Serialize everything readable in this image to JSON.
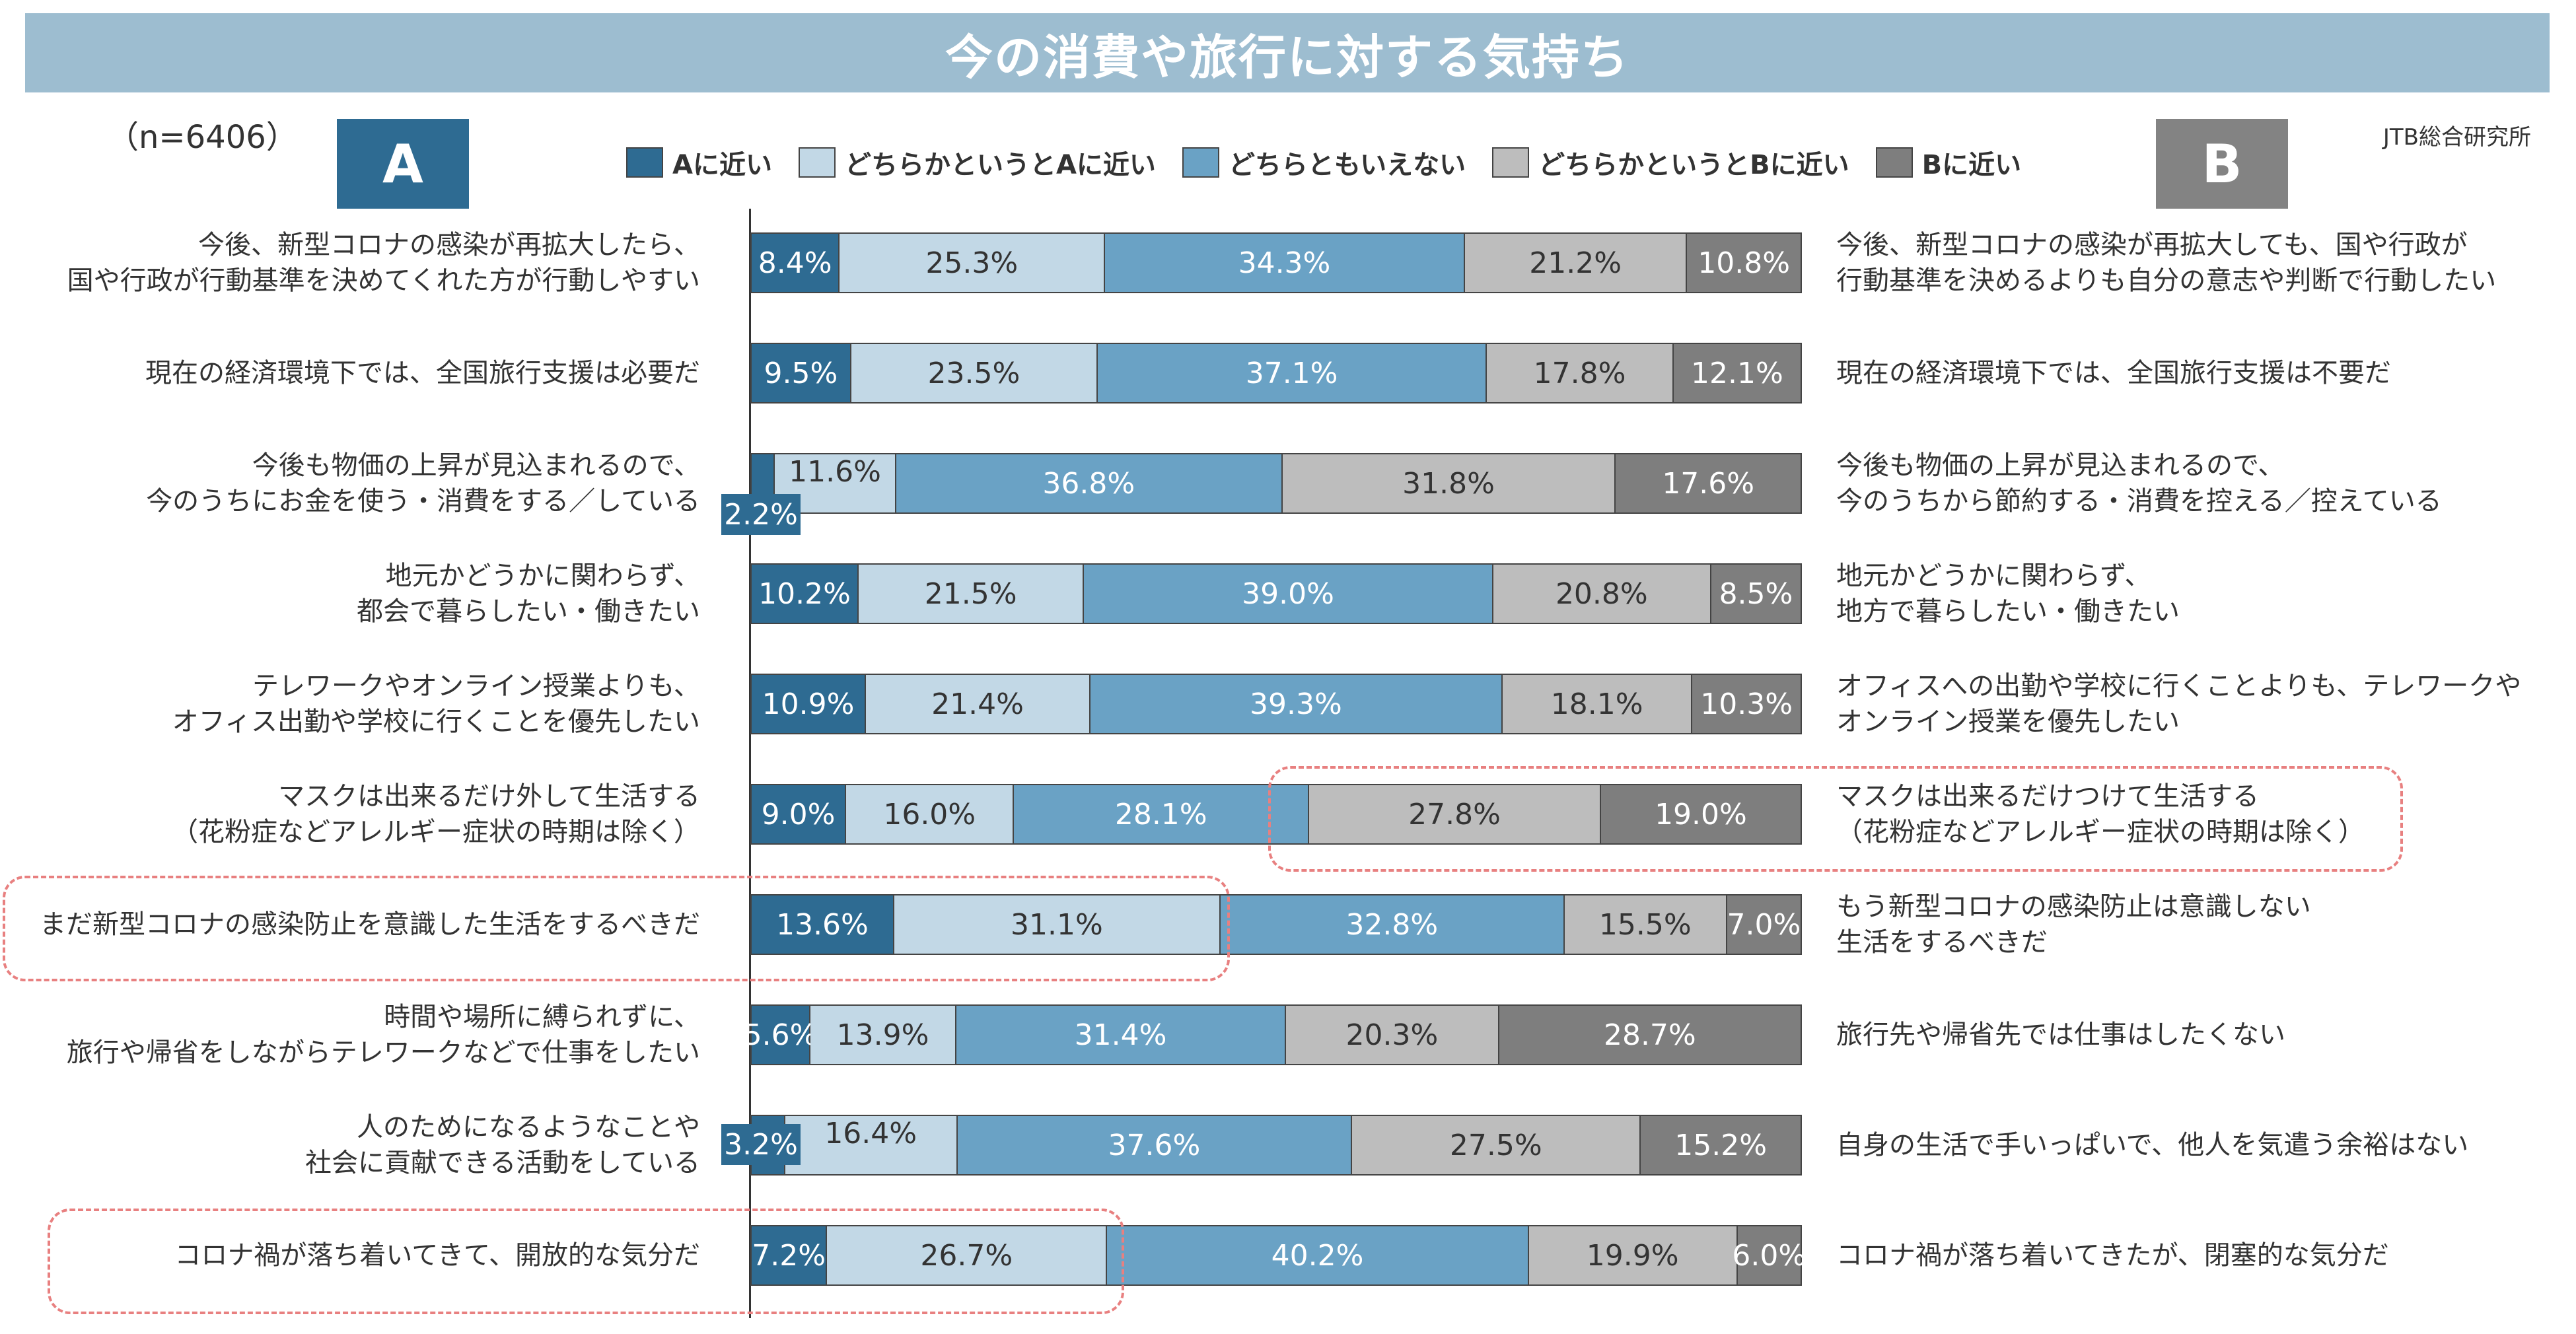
{
  "header": {
    "title": "今の消費や旅行に対する気持ち",
    "sample_size": "（n=6406）",
    "source": "JTB総合研究所",
    "badge_a": "A",
    "badge_b": "B"
  },
  "colors": {
    "title_bg": "#9dbdd0",
    "a_near": "#2e6b92",
    "lean_a": "#c2d8e6",
    "neither": "#6aa2c5",
    "lean_b": "#bdbdbd",
    "b_near": "#7e7e7e",
    "highlight": "#e88080"
  },
  "chart_data": {
    "type": "bar",
    "orientation": "horizontal",
    "stacked": true,
    "title": "今の消費や旅行に対する気持ち",
    "xlim": [
      0,
      100
    ],
    "unit": "%",
    "legend": [
      "Aに近い",
      "どちらかというとAに近い",
      "どちらともいえない",
      "どちらかというとBに近い",
      "Bに近い"
    ],
    "legend_position": "top",
    "rows": [
      {
        "a_label": [
          "今後、新型コロナの感染が再拡大したら、",
          "国や行政が行動基準を決めてくれた方が行動しやすい"
        ],
        "b_label": [
          "今後、新型コロナの感染が再拡大しても、国や行政が",
          "行動基準を決めるよりも自分の意志や判断で行動したい"
        ],
        "values": [
          8.4,
          25.3,
          34.3,
          21.2,
          10.8
        ],
        "labels": [
          "8.4%",
          "25.3%",
          "34.3%",
          "21.2%",
          "10.8%"
        ]
      },
      {
        "a_label": [
          "現在の経済環境下では、全国旅行支援は必要だ"
        ],
        "b_label": [
          "現在の経済環境下では、全国旅行支援は不要だ"
        ],
        "values": [
          9.5,
          23.5,
          37.1,
          17.8,
          12.1
        ],
        "labels": [
          "9.5%",
          "23.5%",
          "37.1%",
          "17.8%",
          "12.1%"
        ]
      },
      {
        "a_label": [
          "今後も物価の上昇が見込まれるので、",
          "今のうちにお金を使う・消費をする／している"
        ],
        "b_label": [
          "今後も物価の上昇が見込まれるので、",
          "今のうちから節約する・消費を控える／控えている"
        ],
        "values": [
          2.2,
          11.6,
          36.8,
          31.8,
          17.6
        ],
        "labels": [
          "2.2%",
          "11.6%",
          "36.8%",
          "31.8%",
          "17.6%"
        ]
      },
      {
        "a_label": [
          "地元かどうかに関わらず、",
          "都会で暮らしたい・働きたい"
        ],
        "b_label": [
          "地元かどうかに関わらず、",
          "地方で暮らしたい・働きたい"
        ],
        "values": [
          10.2,
          21.5,
          39.0,
          20.8,
          8.5
        ],
        "labels": [
          "10.2%",
          "21.5%",
          "39.0%",
          "20.8%",
          "8.5%"
        ]
      },
      {
        "a_label": [
          "テレワークやオンライン授業よりも、",
          "オフィス出勤や学校に行くことを優先したい"
        ],
        "b_label": [
          "オフィスへの出勤や学校に行くことよりも、テレワークや",
          "オンライン授業を優先したい"
        ],
        "values": [
          10.9,
          21.4,
          39.3,
          18.1,
          10.3
        ],
        "labels": [
          "10.9%",
          "21.4%",
          "39.3%",
          "18.1%",
          "10.3%"
        ]
      },
      {
        "a_label": [
          "マスクは出来るだけ外して生活する",
          "（花粉症などアレルギー症状の時期は除く）"
        ],
        "b_label": [
          "マスクは出来るだけつけて生活する",
          "（花粉症などアレルギー症状の時期は除く）"
        ],
        "values": [
          9.0,
          16.0,
          28.1,
          27.8,
          19.0
        ],
        "labels": [
          "9.0%",
          "16.0%",
          "28.1%",
          "27.8%",
          "19.0%"
        ]
      },
      {
        "a_label": [
          "まだ新型コロナの感染防止を意識した生活をするべきだ"
        ],
        "b_label": [
          "もう新型コロナの感染防止は意識しない",
          "生活をするべきだ"
        ],
        "values": [
          13.6,
          31.1,
          32.8,
          15.5,
          7.0
        ],
        "labels": [
          "13.6%",
          "31.1%",
          "32.8%",
          "15.5%",
          "7.0%"
        ]
      },
      {
        "a_label": [
          "時間や場所に縛られずに、",
          "旅行や帰省をしながらテレワークなどで仕事をしたい"
        ],
        "b_label": [
          "旅行先や帰省先では仕事はしたくない"
        ],
        "values": [
          5.6,
          13.9,
          31.4,
          20.3,
          28.7
        ],
        "labels": [
          "5.6%",
          "13.9%",
          "31.4%",
          "20.3%",
          "28.7%"
        ]
      },
      {
        "a_label": [
          "人のためになるようなことや",
          "社会に貢献できる活動をしている"
        ],
        "b_label": [
          "自身の生活で手いっぱいで、他人を気遣う余裕はない"
        ],
        "values": [
          3.2,
          16.4,
          37.6,
          27.5,
          15.2
        ],
        "labels": [
          "3.2%",
          "16.4%",
          "37.6%",
          "27.5%",
          "15.2%"
        ]
      },
      {
        "a_label": [
          "コロナ禍が落ち着いてきて、開放的な気分だ"
        ],
        "b_label": [
          "コロナ禍が落ち着いてきたが、閉塞的な気分だ"
        ],
        "values": [
          7.2,
          26.7,
          40.2,
          19.9,
          6.0
        ],
        "labels": [
          "7.2%",
          "26.7%",
          "40.2%",
          "19.9%",
          "6.0%"
        ]
      }
    ]
  }
}
